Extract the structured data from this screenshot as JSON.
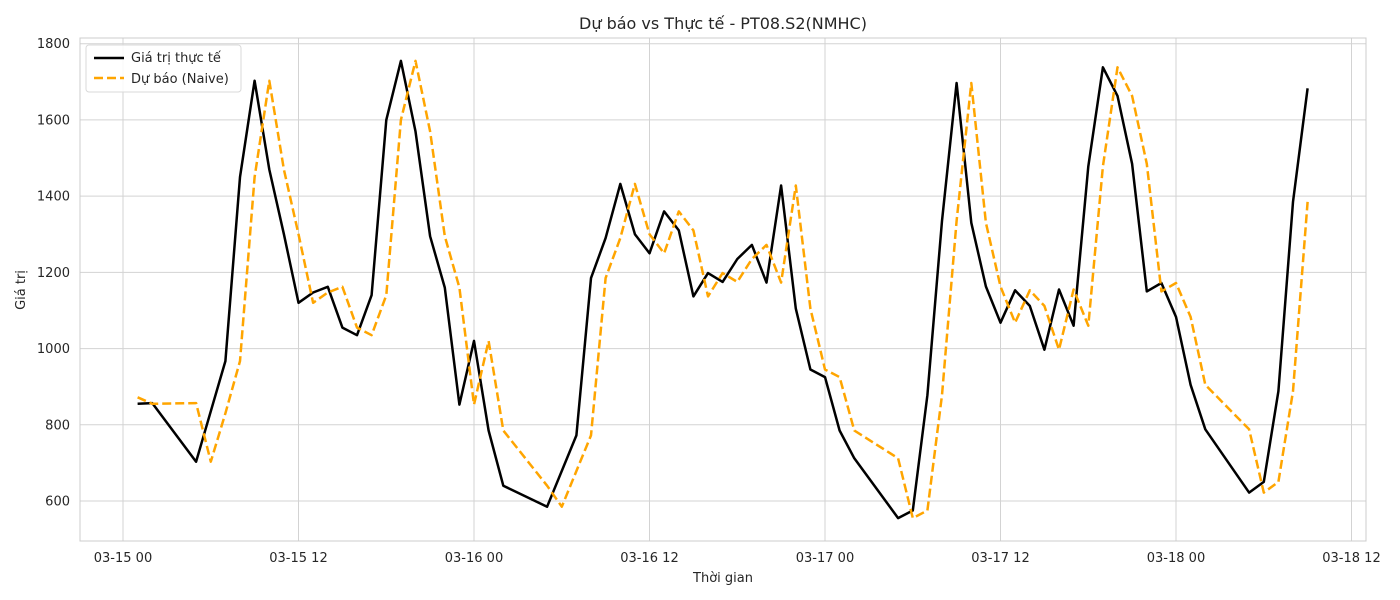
{
  "chart_data": {
    "type": "line",
    "title": "Dự báo vs Thực tế - PT08.S2(NMHC)",
    "xlabel": "Thời gian",
    "ylabel": "Giá trị",
    "x_start": "2004-03-15 00:00",
    "ylim": [
      495,
      1815
    ],
    "y_ticks": [
      600,
      800,
      1000,
      1200,
      1400,
      1600,
      1800
    ],
    "x_ticks": [
      {
        "hour": 0,
        "label": "03-15 00"
      },
      {
        "hour": 12,
        "label": "03-15 12"
      },
      {
        "hour": 24,
        "label": "03-16 00"
      },
      {
        "hour": 36,
        "label": "03-16 12"
      },
      {
        "hour": 48,
        "label": "03-17 00"
      },
      {
        "hour": 60,
        "label": "03-17 12"
      },
      {
        "hour": 72,
        "label": "03-18 00"
      },
      {
        "hour": 84,
        "label": "03-18 12"
      }
    ],
    "grid": true,
    "legend_position": "top-left",
    "series": [
      {
        "name": "Giá trị thực tế",
        "color": "#000000",
        "style": "solid",
        "points": [
          [
            1,
            855
          ],
          [
            2,
            857
          ],
          [
            5,
            703
          ],
          [
            7,
            967
          ],
          [
            8,
            1450
          ],
          [
            9,
            1703
          ],
          [
            10,
            1470
          ],
          [
            11,
            1300
          ],
          [
            12,
            1120
          ],
          [
            13,
            1147
          ],
          [
            14,
            1162
          ],
          [
            15,
            1055
          ],
          [
            16,
            1035
          ],
          [
            17,
            1140
          ],
          [
            18,
            1600
          ],
          [
            19,
            1755
          ],
          [
            20,
            1570
          ],
          [
            21,
            1295
          ],
          [
            22,
            1160
          ],
          [
            23,
            853
          ],
          [
            24,
            1020
          ],
          [
            25,
            785
          ],
          [
            26,
            640
          ],
          [
            29,
            585
          ],
          [
            31,
            772
          ],
          [
            32,
            1185
          ],
          [
            33,
            1290
          ],
          [
            34,
            1432
          ],
          [
            35,
            1300
          ],
          [
            36,
            1250
          ],
          [
            37,
            1360
          ],
          [
            38,
            1310
          ],
          [
            39,
            1137
          ],
          [
            40,
            1198
          ],
          [
            41,
            1175
          ],
          [
            42,
            1235
          ],
          [
            43,
            1272
          ],
          [
            44,
            1173
          ],
          [
            45,
            1428
          ],
          [
            46,
            1105
          ],
          [
            47,
            945
          ],
          [
            48,
            925
          ],
          [
            49,
            785
          ],
          [
            50,
            712
          ],
          [
            53,
            555
          ],
          [
            54,
            575
          ],
          [
            55,
            878
          ],
          [
            56,
            1335
          ],
          [
            57,
            1697
          ],
          [
            58,
            1330
          ],
          [
            59,
            1163
          ],
          [
            60,
            1068
          ],
          [
            61,
            1153
          ],
          [
            62,
            1112
          ],
          [
            63,
            997
          ],
          [
            64,
            1155
          ],
          [
            65,
            1060
          ],
          [
            66,
            1478
          ],
          [
            67,
            1738
          ],
          [
            68,
            1663
          ],
          [
            69,
            1485
          ],
          [
            70,
            1150
          ],
          [
            71,
            1172
          ],
          [
            72,
            1083
          ],
          [
            73,
            905
          ],
          [
            74,
            788
          ],
          [
            77,
            622
          ],
          [
            78,
            650
          ],
          [
            79,
            888
          ],
          [
            80,
            1385
          ],
          [
            81,
            1683
          ]
        ]
      },
      {
        "name": "Dự báo (Naive)",
        "color": "#ffa500",
        "style": "dashed",
        "points": [
          [
            1,
            872
          ],
          [
            2,
            855
          ],
          [
            5,
            857
          ],
          [
            6,
            703
          ],
          [
            7,
            830
          ],
          [
            8,
            967
          ],
          [
            9,
            1450
          ],
          [
            10,
            1703
          ],
          [
            11,
            1470
          ],
          [
            12,
            1300
          ],
          [
            13,
            1120
          ],
          [
            14,
            1147
          ],
          [
            15,
            1162
          ],
          [
            16,
            1055
          ],
          [
            17,
            1035
          ],
          [
            18,
            1140
          ],
          [
            19,
            1600
          ],
          [
            20,
            1755
          ],
          [
            21,
            1570
          ],
          [
            22,
            1295
          ],
          [
            23,
            1160
          ],
          [
            24,
            853
          ],
          [
            25,
            1020
          ],
          [
            26,
            785
          ],
          [
            29,
            640
          ],
          [
            30,
            585
          ],
          [
            32,
            772
          ],
          [
            33,
            1185
          ],
          [
            34,
            1290
          ],
          [
            35,
            1432
          ],
          [
            36,
            1300
          ],
          [
            37,
            1250
          ],
          [
            38,
            1360
          ],
          [
            39,
            1310
          ],
          [
            40,
            1137
          ],
          [
            41,
            1198
          ],
          [
            42,
            1175
          ],
          [
            43,
            1235
          ],
          [
            44,
            1272
          ],
          [
            45,
            1173
          ],
          [
            46,
            1428
          ],
          [
            47,
            1105
          ],
          [
            48,
            945
          ],
          [
            49,
            925
          ],
          [
            50,
            785
          ],
          [
            53,
            712
          ],
          [
            54,
            555
          ],
          [
            55,
            575
          ],
          [
            56,
            878
          ],
          [
            57,
            1335
          ],
          [
            58,
            1697
          ],
          [
            59,
            1330
          ],
          [
            60,
            1163
          ],
          [
            61,
            1068
          ],
          [
            62,
            1153
          ],
          [
            63,
            1112
          ],
          [
            64,
            997
          ],
          [
            65,
            1155
          ],
          [
            66,
            1060
          ],
          [
            67,
            1478
          ],
          [
            68,
            1738
          ],
          [
            69,
            1663
          ],
          [
            70,
            1485
          ],
          [
            71,
            1150
          ],
          [
            72,
            1172
          ],
          [
            73,
            1083
          ],
          [
            74,
            905
          ],
          [
            77,
            788
          ],
          [
            78,
            622
          ],
          [
            79,
            650
          ],
          [
            80,
            888
          ],
          [
            81,
            1385
          ]
        ]
      }
    ]
  }
}
